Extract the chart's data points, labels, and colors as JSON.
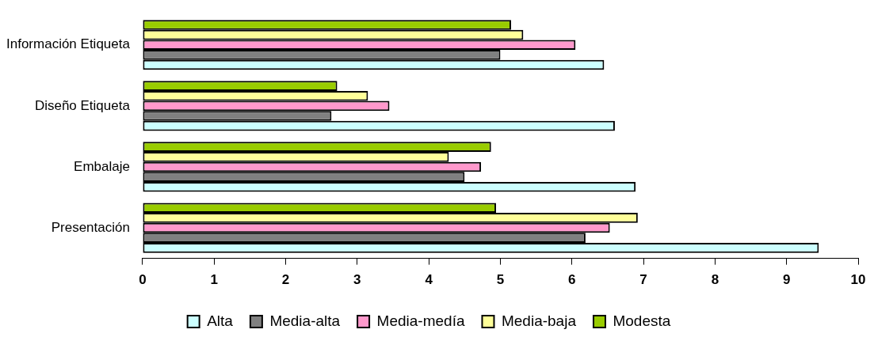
{
  "chart_data": {
    "type": "bar",
    "orientation": "horizontal",
    "categories": [
      "Información Etiqueta",
      "Diseño Etiqueta",
      "Embalaje",
      "Presentación"
    ],
    "series": [
      {
        "name": "Alta",
        "color": "#ccffff",
        "values": [
          6.45,
          6.6,
          6.89,
          9.45
        ]
      },
      {
        "name": "Media-alta",
        "color": "#808080",
        "values": [
          5.0,
          2.64,
          4.5,
          6.19
        ]
      },
      {
        "name": "Media-medía",
        "color": "#ff99cc",
        "values": [
          6.05,
          3.45,
          4.73,
          6.53
        ]
      },
      {
        "name": "Media-baja",
        "color": "#ffff99",
        "values": [
          5.32,
          3.15,
          4.28,
          6.92
        ]
      },
      {
        "name": "Modesta",
        "color": "#99cc00",
        "values": [
          5.15,
          2.72,
          4.87,
          4.94
        ]
      }
    ],
    "xlim": [
      0,
      10
    ],
    "xticks": [
      0,
      1,
      2,
      3,
      4,
      5,
      6,
      7,
      8,
      9,
      10
    ],
    "grid": false,
    "legend": "bottom"
  }
}
